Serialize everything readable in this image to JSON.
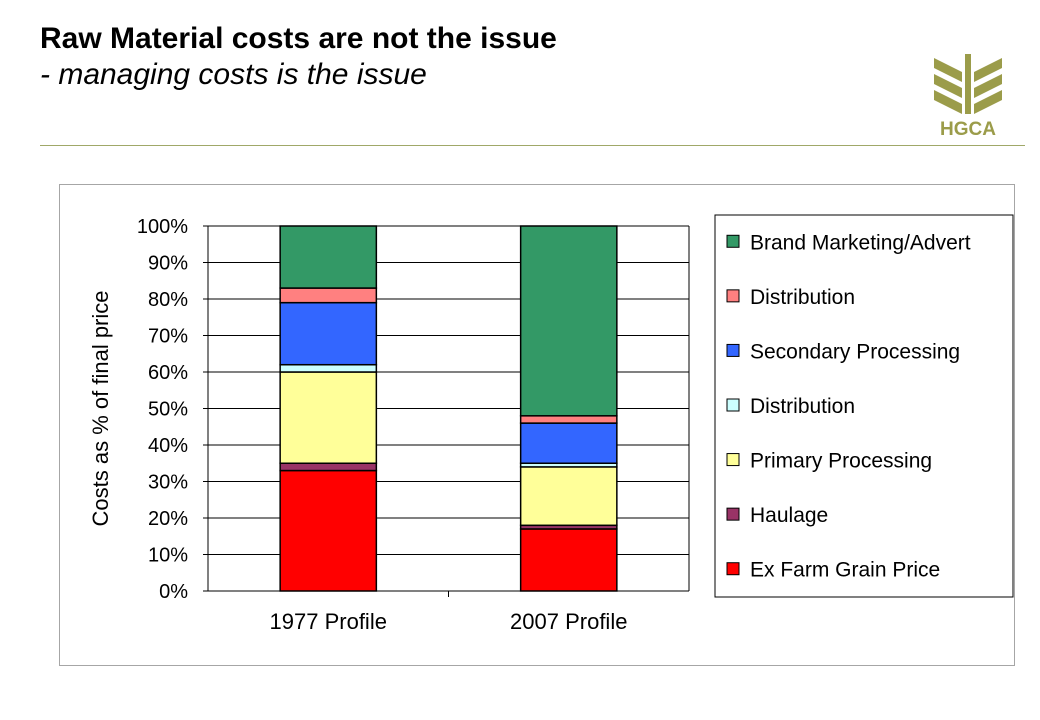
{
  "header": {
    "title": "Raw Material costs are not the issue",
    "subtitle": "- managing costs is the issue",
    "logo_text": "HGCA"
  },
  "colors": {
    "rule": "#a0a868",
    "logo": "#9b9c4a"
  },
  "chart_data": {
    "type": "bar",
    "stacked": true,
    "categories": [
      "1977 Profile",
      "2007 Profile"
    ],
    "ylabel": "Costs as % of final price",
    "ylim": [
      0,
      100
    ],
    "yticks": [
      "0%",
      "10%",
      "20%",
      "30%",
      "40%",
      "50%",
      "60%",
      "70%",
      "80%",
      "90%",
      "100%"
    ],
    "grid": true,
    "legend_position": "right",
    "series": [
      {
        "name": "Ex Farm Grain Price",
        "color": "#ff0000",
        "values": [
          33,
          17
        ]
      },
      {
        "name": "Haulage",
        "color": "#993366",
        "values": [
          2,
          1
        ]
      },
      {
        "name": "Primary Processing",
        "color": "#ffff99",
        "values": [
          25,
          16
        ]
      },
      {
        "name": "Distribution",
        "color": "#ccffff",
        "values": [
          2,
          1
        ]
      },
      {
        "name": "Secondary Processing",
        "color": "#3366ff",
        "values": [
          17,
          11
        ]
      },
      {
        "name": "Distribution",
        "color": "#ff8080",
        "values": [
          4,
          2
        ]
      },
      {
        "name": "Brand Marketing/Advert",
        "color": "#339966",
        "values": [
          17,
          52
        ]
      }
    ]
  }
}
